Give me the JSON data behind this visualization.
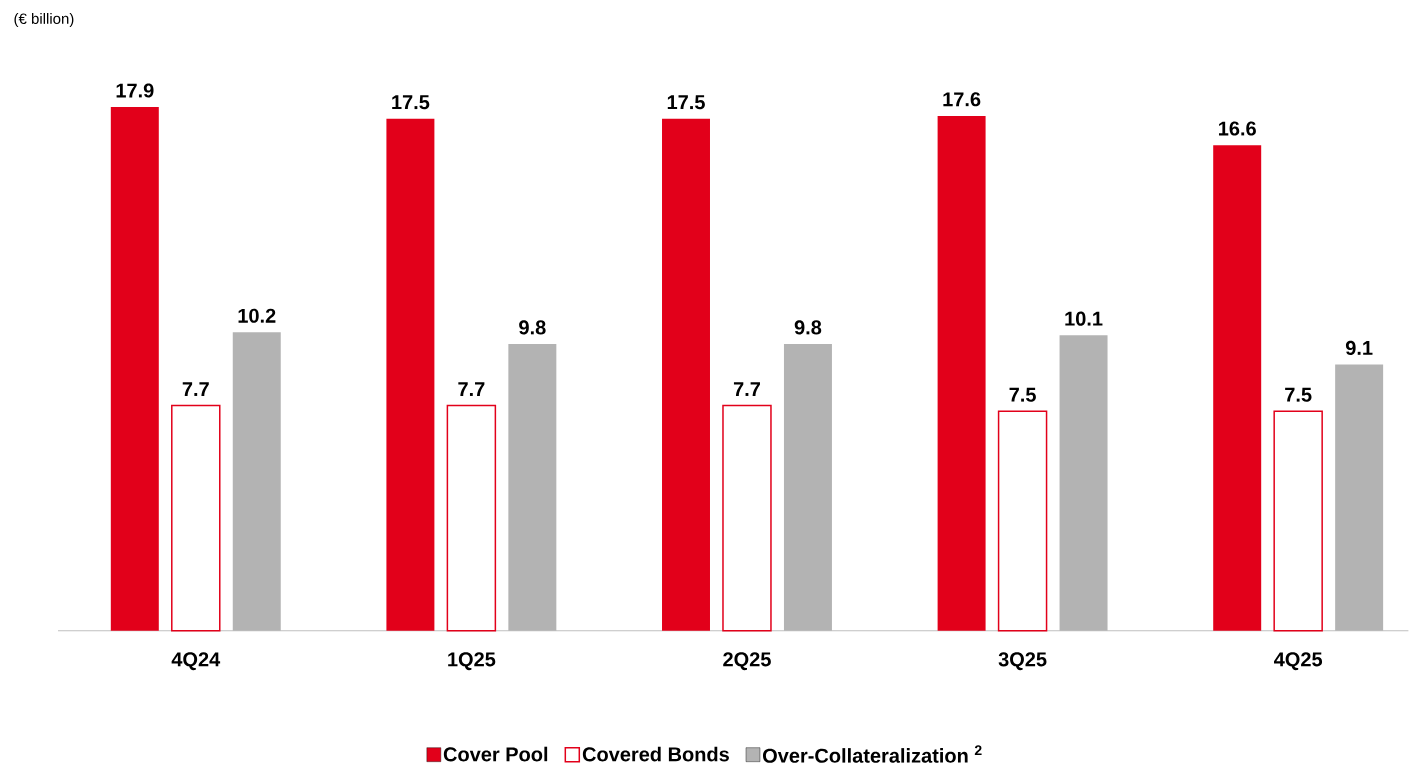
{
  "chart_data": {
    "type": "bar",
    "annotations": [
      "(€ billion)"
    ],
    "categories": [
      "4Q24",
      "1Q25",
      "2Q25",
      "3Q25",
      "4Q25"
    ],
    "series": [
      {
        "name": "Cover Pool",
        "color": "#e2001a",
        "values": [
          17.9,
          17.5,
          17.5,
          17.6,
          16.6
        ]
      },
      {
        "name": "Covered Bonds",
        "color": "#e2001a",
        "values": [
          7.7,
          7.7,
          7.7,
          7.5,
          7.5
        ]
      },
      {
        "name": "Over-Collateralization $^{2}$",
        "color": "#b3b3b3",
        "values": [
          10.2,
          9.8,
          9.8,
          10.1,
          9.1
        ]
      }
    ],
    "data_labels": true,
    "legend": "bottom"
  }
}
